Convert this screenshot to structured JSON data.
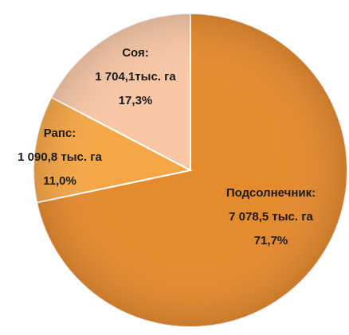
{
  "chart_data": {
    "type": "pie",
    "categories": [
      "Подсолнечник:",
      "Рапс:",
      "Соя:"
    ],
    "values": [
      71.7,
      11.0,
      17.3
    ],
    "value_labels": [
      "71,7%",
      "11,0%",
      "17,3%"
    ],
    "areas": [
      7078.5,
      1090.8,
      1704.1
    ],
    "area_labels": [
      "7 078,5 тыс. га",
      "1 090,8 тыс. га",
      "1 704,1тыс. га"
    ],
    "colors": [
      "#e48a2f",
      "#f5a747",
      "#f7c7a6"
    ]
  }
}
